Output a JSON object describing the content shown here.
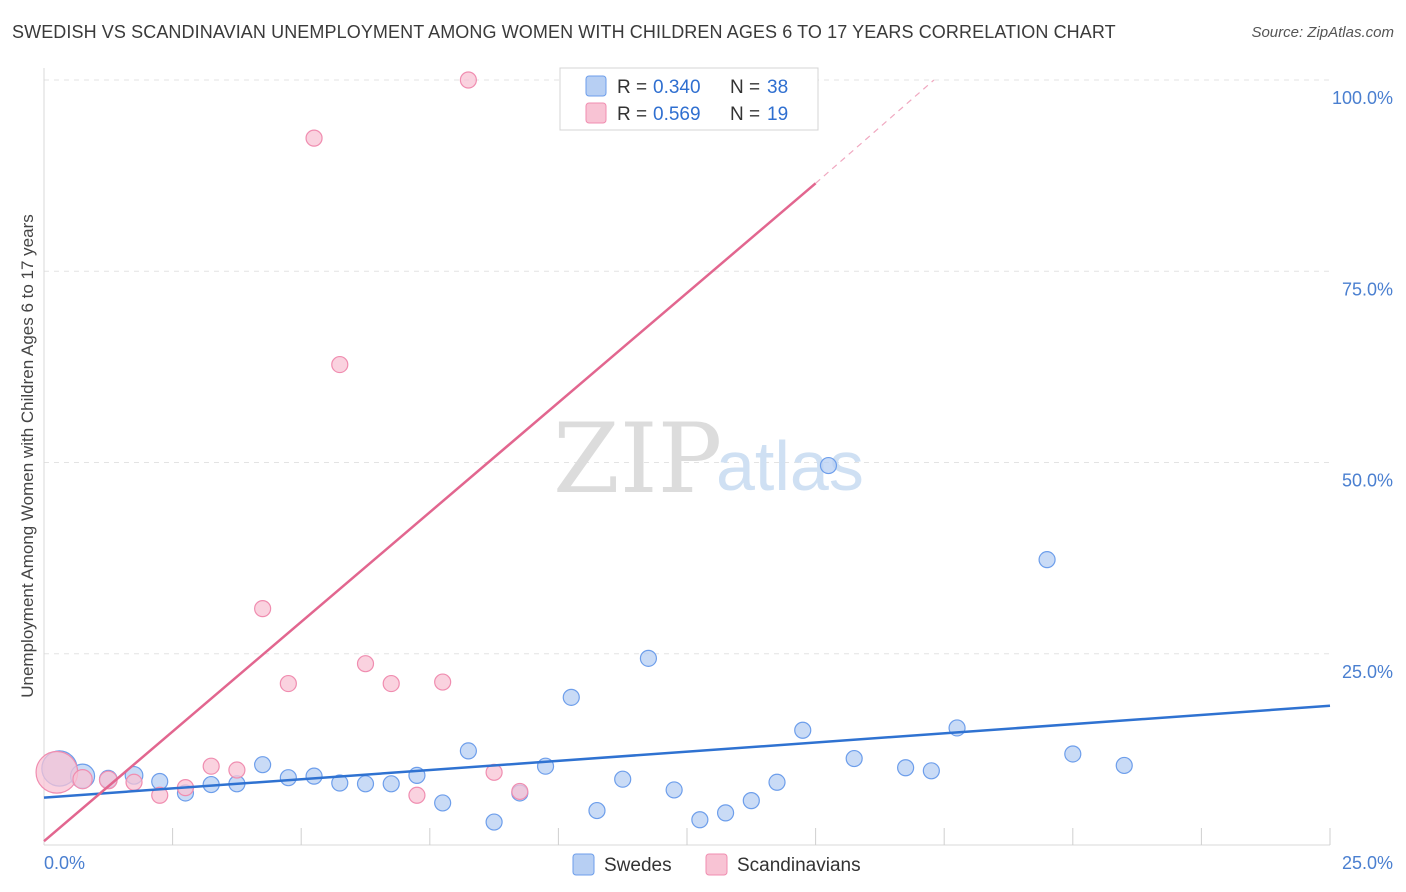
{
  "title": "SWEDISH VS SCANDINAVIAN UNEMPLOYMENT AMONG WOMEN WITH CHILDREN AGES 6 TO 17 YEARS CORRELATION CHART",
  "source": "Source: ZipAtlas.com",
  "watermark": {
    "zip": "ZIP",
    "atlas": "atlas"
  },
  "colors": {
    "blue": "#6d9eeb",
    "blue_fill": "#b7cff3",
    "blue_line": "#2f72d1",
    "pink": "#f08db0",
    "pink_fill": "#f8c3d4",
    "pink_line": "#e2668f",
    "grid": "#e3e3e3",
    "tick_text": "#4a7fd0"
  },
  "legend": {
    "r_label": "R =",
    "n_label": "N =",
    "items": [
      {
        "name": "Swedes",
        "r": "0.340",
        "n": "38"
      },
      {
        "name": "Scandinavians",
        "r": "0.569",
        "n": "19"
      }
    ]
  },
  "chart_data": {
    "type": "scatter",
    "title": "SWEDISH VS SCANDINAVIAN UNEMPLOYMENT AMONG WOMEN WITH CHILDREN AGES 6 TO 17 YEARS CORRELATION CHART",
    "xlabel": "",
    "ylabel": "Unemployment Among Women with Children Ages 6 to 17 years",
    "xlim": [
      0,
      25
    ],
    "ylim": [
      0,
      100
    ],
    "x_tick_labels": [
      "0.0%",
      "25.0%"
    ],
    "y_ticks": [
      25,
      50,
      75,
      100
    ],
    "y_tick_labels": [
      "25.0%",
      "50.0%",
      "75.0%",
      "100.0%"
    ],
    "series": [
      {
        "name": "Swedes",
        "r": 0.34,
        "n": 38,
        "trend": {
          "x0": 0,
          "y0": 6.2,
          "x1": 25,
          "y1": 18.2
        },
        "points": [
          {
            "x": 0.3,
            "y": 10.0,
            "s": 2.2
          },
          {
            "x": 0.75,
            "y": 9.0,
            "s": 1.5
          },
          {
            "x": 1.25,
            "y": 8.6,
            "s": 1.1
          },
          {
            "x": 1.75,
            "y": 9.1,
            "s": 1.1
          },
          {
            "x": 2.25,
            "y": 8.3,
            "s": 1.0
          },
          {
            "x": 2.75,
            "y": 6.8,
            "s": 1.0
          },
          {
            "x": 3.25,
            "y": 7.9,
            "s": 1.0
          },
          {
            "x": 3.75,
            "y": 8.0,
            "s": 1.0
          },
          {
            "x": 4.25,
            "y": 10.5,
            "s": 1.0
          },
          {
            "x": 4.75,
            "y": 8.8,
            "s": 1.0
          },
          {
            "x": 5.25,
            "y": 9.0,
            "s": 1.0
          },
          {
            "x": 5.75,
            "y": 8.1,
            "s": 1.0
          },
          {
            "x": 6.25,
            "y": 8.0,
            "s": 1.0
          },
          {
            "x": 6.75,
            "y": 8.0,
            "s": 1.0
          },
          {
            "x": 7.25,
            "y": 9.1,
            "s": 1.0
          },
          {
            "x": 7.75,
            "y": 5.5,
            "s": 1.0
          },
          {
            "x": 8.25,
            "y": 12.3,
            "s": 1.0
          },
          {
            "x": 8.75,
            "y": 3.0,
            "s": 1.0
          },
          {
            "x": 9.25,
            "y": 6.8,
            "s": 1.0
          },
          {
            "x": 9.75,
            "y": 10.3,
            "s": 1.0
          },
          {
            "x": 10.25,
            "y": 19.3,
            "s": 1.0
          },
          {
            "x": 10.75,
            "y": 4.5,
            "s": 1.0
          },
          {
            "x": 11.25,
            "y": 8.6,
            "s": 1.0
          },
          {
            "x": 11.75,
            "y": 24.4,
            "s": 1.0
          },
          {
            "x": 12.25,
            "y": 7.2,
            "s": 1.0
          },
          {
            "x": 12.75,
            "y": 3.3,
            "s": 1.0
          },
          {
            "x": 13.25,
            "y": 4.2,
            "s": 1.0
          },
          {
            "x": 13.75,
            "y": 5.8,
            "s": 1.0
          },
          {
            "x": 14.25,
            "y": 8.2,
            "s": 1.0
          },
          {
            "x": 14.75,
            "y": 15.0,
            "s": 1.0
          },
          {
            "x": 15.25,
            "y": 49.6,
            "s": 1.0
          },
          {
            "x": 15.75,
            "y": 11.3,
            "s": 1.0
          },
          {
            "x": 16.75,
            "y": 10.1,
            "s": 1.0
          },
          {
            "x": 17.25,
            "y": 9.7,
            "s": 1.0
          },
          {
            "x": 17.75,
            "y": 15.3,
            "s": 1.0
          },
          {
            "x": 19.5,
            "y": 37.3,
            "s": 1.0
          },
          {
            "x": 20.0,
            "y": 11.9,
            "s": 1.0
          },
          {
            "x": 21.0,
            "y": 10.4,
            "s": 1.0
          }
        ]
      },
      {
        "name": "Scandinavians",
        "r": 0.569,
        "n": 19,
        "trend": {
          "x0": 0,
          "y0": 0.5,
          "x1": 15.0,
          "y1": 86.5,
          "dash_x1": 17.3,
          "dash_y1": 100.0
        },
        "points": [
          {
            "x": 0.25,
            "y": 9.5,
            "s": 2.6
          },
          {
            "x": 0.75,
            "y": 8.6,
            "s": 1.2
          },
          {
            "x": 1.25,
            "y": 8.5,
            "s": 1.1
          },
          {
            "x": 1.75,
            "y": 8.2,
            "s": 1.0
          },
          {
            "x": 2.25,
            "y": 6.5,
            "s": 1.0
          },
          {
            "x": 2.75,
            "y": 7.5,
            "s": 1.0
          },
          {
            "x": 3.25,
            "y": 10.3,
            "s": 1.0
          },
          {
            "x": 3.75,
            "y": 9.8,
            "s": 1.0
          },
          {
            "x": 4.25,
            "y": 30.9,
            "s": 1.0
          },
          {
            "x": 4.75,
            "y": 21.1,
            "s": 1.0
          },
          {
            "x": 5.25,
            "y": 92.4,
            "s": 1.0
          },
          {
            "x": 5.75,
            "y": 62.8,
            "s": 1.0
          },
          {
            "x": 6.25,
            "y": 23.7,
            "s": 1.0
          },
          {
            "x": 6.75,
            "y": 21.1,
            "s": 1.0
          },
          {
            "x": 7.25,
            "y": 6.5,
            "s": 1.0
          },
          {
            "x": 7.75,
            "y": 21.3,
            "s": 1.0
          },
          {
            "x": 8.25,
            "y": 100.0,
            "s": 1.0
          },
          {
            "x": 8.75,
            "y": 9.5,
            "s": 1.0
          },
          {
            "x": 9.25,
            "y": 7.0,
            "s": 1.0
          }
        ]
      }
    ]
  }
}
